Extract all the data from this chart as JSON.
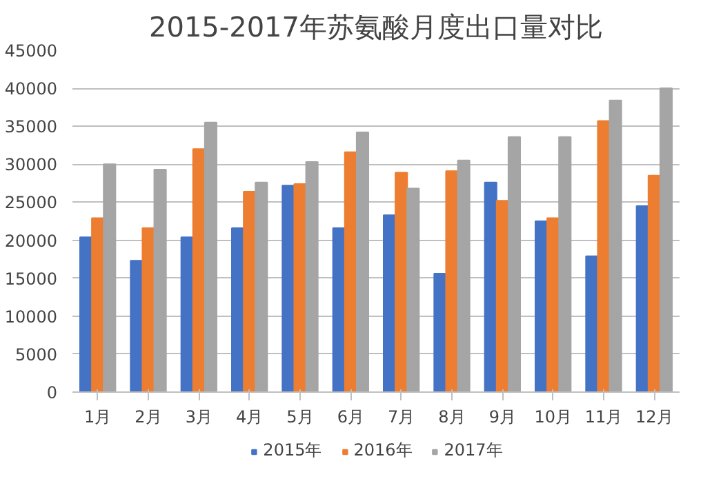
{
  "chart_data": {
    "type": "bar",
    "title": "2015-2017年苏氨酸月度出口量对比",
    "categories": [
      "1月",
      "2月",
      "3月",
      "4月",
      "5月",
      "6月",
      "7月",
      "8月",
      "9月",
      "10月",
      "11月",
      "12月"
    ],
    "series": [
      {
        "name": "2015年",
        "color": "#4472c4",
        "values": [
          20400,
          17300,
          20400,
          21600,
          27200,
          21600,
          23300,
          15600,
          27600,
          22500,
          17900,
          24500
        ]
      },
      {
        "name": "2016年",
        "color": "#ed7d31",
        "values": [
          22900,
          21600,
          32000,
          26400,
          27400,
          31600,
          28900,
          29100,
          25200,
          22900,
          35700,
          28500
        ]
      },
      {
        "name": "2017年",
        "color": "#a5a5a5",
        "values": [
          30000,
          29300,
          35500,
          27600,
          30300,
          34200,
          26800,
          30500,
          33600,
          33600,
          38400,
          40000
        ]
      }
    ],
    "ylim": [
      0,
      45000
    ],
    "yticks": [
      0,
      5000,
      10000,
      15000,
      20000,
      25000,
      30000,
      35000,
      40000,
      45000
    ],
    "grid": "y",
    "legend": "bottom"
  }
}
